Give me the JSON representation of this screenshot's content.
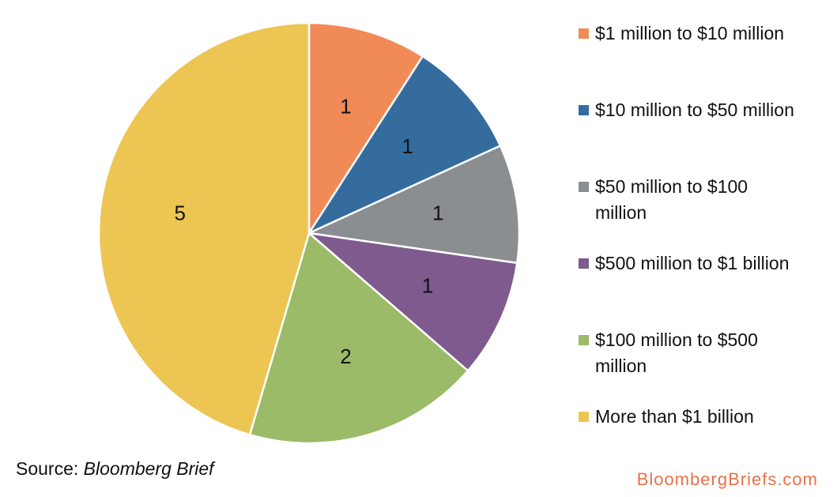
{
  "chart_data": {
    "type": "pie",
    "title": "",
    "slices": [
      {
        "label": "$1 million to $10 million",
        "value": 1,
        "color": "#F08A57"
      },
      {
        "label": "$10 million to $50 million",
        "value": 1,
        "color": "#346C9E"
      },
      {
        "label": "$50 million to $100 million",
        "value": 1,
        "color": "#8B8E90"
      },
      {
        "label": "$500 million to $1 billion",
        "value": 1,
        "color": "#7F5A8E"
      },
      {
        "label": "$100 million to $500 million",
        "value": 2,
        "color": "#9BBB68"
      },
      {
        "label": "More than $1 billion",
        "value": 5,
        "color": "#EDC553"
      }
    ],
    "legend_position": "right",
    "data_labels": true
  },
  "source": {
    "prefix": "Source: ",
    "name": "Bloomberg Brief"
  },
  "brand": "BloombergBriefs.com"
}
